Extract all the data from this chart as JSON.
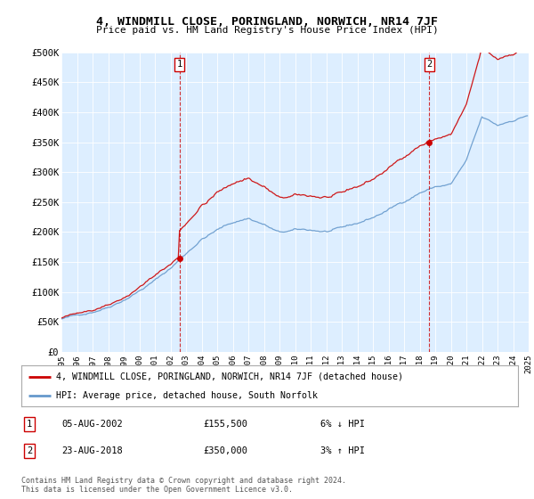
{
  "title_line1": "4, WINDMILL CLOSE, PORINGLAND, NORWICH, NR14 7JF",
  "title_line2": "Price paid vs. HM Land Registry's House Price Index (HPI)",
  "xlim_years": [
    1995,
    2025
  ],
  "ylim": [
    0,
    500000
  ],
  "yticks": [
    0,
    50000,
    100000,
    150000,
    200000,
    250000,
    300000,
    350000,
    400000,
    450000,
    500000
  ],
  "ytick_labels": [
    "£0",
    "£50K",
    "£100K",
    "£150K",
    "£200K",
    "£250K",
    "£300K",
    "£350K",
    "£400K",
    "£450K",
    "£500K"
  ],
  "xtick_years": [
    1995,
    1996,
    1997,
    1998,
    1999,
    2000,
    2001,
    2002,
    2003,
    2004,
    2005,
    2006,
    2007,
    2008,
    2009,
    2010,
    2011,
    2012,
    2013,
    2014,
    2015,
    2016,
    2017,
    2018,
    2019,
    2020,
    2021,
    2022,
    2023,
    2024,
    2025
  ],
  "sale1_year": 2002.58,
  "sale1_price": 155500,
  "sale2_year": 2018.62,
  "sale2_price": 350000,
  "legend_line1": "4, WINDMILL CLOSE, PORINGLAND, NORWICH, NR14 7JF (detached house)",
  "legend_line2": "HPI: Average price, detached house, South Norfolk",
  "annotation1_date": "05-AUG-2002",
  "annotation1_price": "£155,500",
  "annotation1_hpi": "6% ↓ HPI",
  "annotation2_date": "23-AUG-2018",
  "annotation2_price": "£350,000",
  "annotation2_hpi": "3% ↑ HPI",
  "footer": "Contains HM Land Registry data © Crown copyright and database right 2024.\nThis data is licensed under the Open Government Licence v3.0.",
  "line_color_property": "#cc0000",
  "line_color_hpi": "#6699cc",
  "background_color": "#ddeeff"
}
